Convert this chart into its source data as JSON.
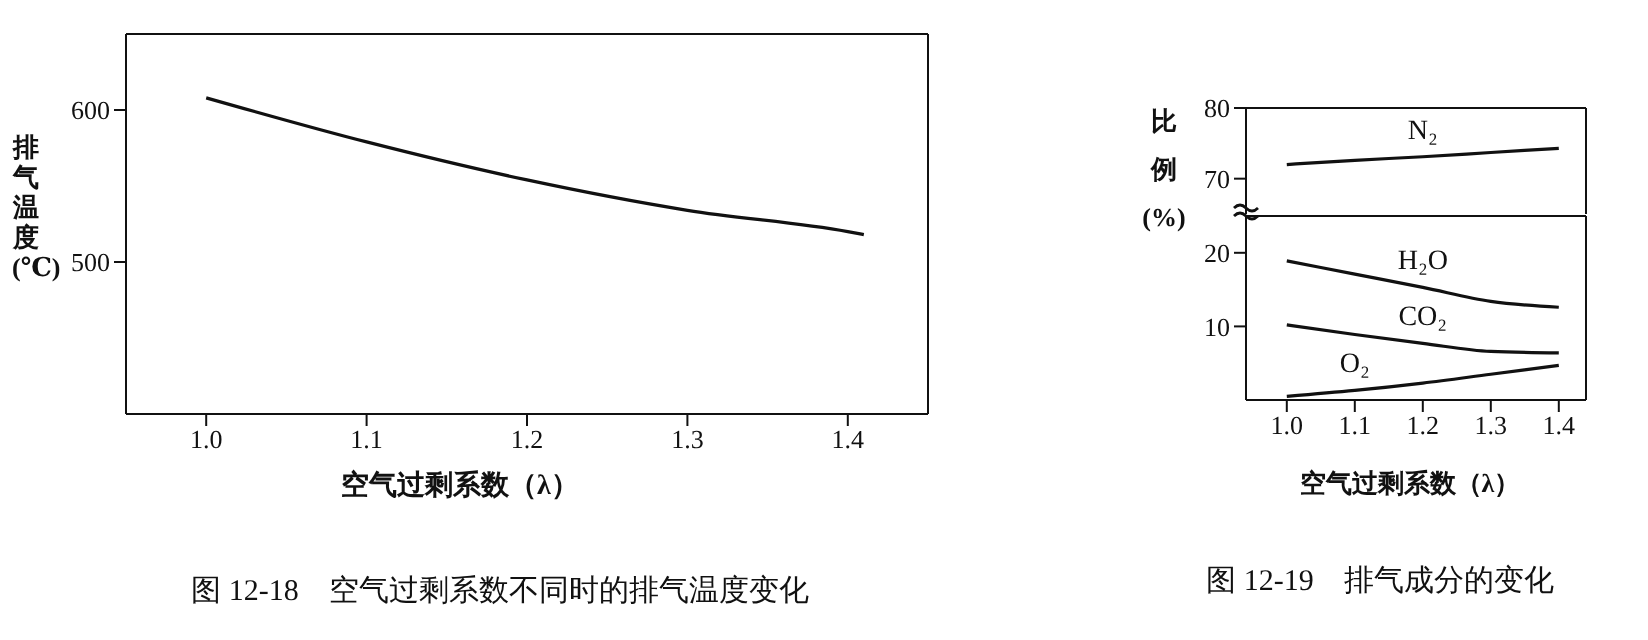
{
  "chart_data": [
    {
      "type": "line",
      "title": "图 12-18　空气过剩系数不同时的排气温度变化",
      "xlabel": "空气过剩系数（λ）",
      "ylabel": "排气温度 (℃)",
      "marker": "none",
      "x": [
        1.0,
        1.1,
        1.2,
        1.3,
        1.4,
        1.41
      ],
      "series": [
        {
          "color": "#111111",
          "values": [
            608,
            579,
            554,
            534,
            520,
            518
          ]
        }
      ],
      "xlim": [
        0.95,
        1.45
      ],
      "xticks": [
        {
          "value": 1.0,
          "label": "1.0"
        },
        1.1,
        1.2,
        1.3,
        1.4
      ],
      "ylim": [
        400,
        650
      ],
      "yticks": [
        500,
        600
      ]
    },
    {
      "type": "line",
      "marker": "none",
      "tick_labels": "y",
      "x": [
        1.0,
        1.1,
        1.2,
        1.3,
        1.4
      ],
      "series": [
        {
          "name": "N₂",
          "color": "#111111",
          "values": [
            72.0,
            72.6,
            73.1,
            73.7,
            74.3
          ]
        }
      ],
      "xlim": [
        0.94,
        1.44
      ],
      "ylim": [
        65,
        80
      ],
      "yticks": [
        70,
        80
      ]
    },
    {
      "type": "line",
      "title": "图 12-19　排气成分的变化",
      "xlabel": "空气过剩系数（λ）",
      "ylabel": "比例 (%)",
      "marker": "none",
      "x": [
        1.0,
        1.1,
        1.2,
        1.3,
        1.4
      ],
      "series": [
        {
          "name": "H₂O",
          "color": "#111111",
          "values": [
            18.9,
            17.1,
            15.3,
            13.4,
            12.6
          ]
        },
        {
          "name": "CO₂",
          "color": "#111111",
          "values": [
            10.2,
            8.9,
            7.7,
            6.6,
            6.4
          ]
        },
        {
          "name": "O₂",
          "color": "#111111",
          "values": [
            0.5,
            1.3,
            2.3,
            3.5,
            4.7
          ]
        }
      ],
      "xlim": [
        0.94,
        1.44
      ],
      "xticks": [
        {
          "value": 1.0,
          "label": "1.0"
        },
        1.1,
        1.2,
        1.3,
        1.4
      ],
      "ylim": [
        0,
        25
      ],
      "yticks": [
        10,
        20
      ]
    }
  ]
}
